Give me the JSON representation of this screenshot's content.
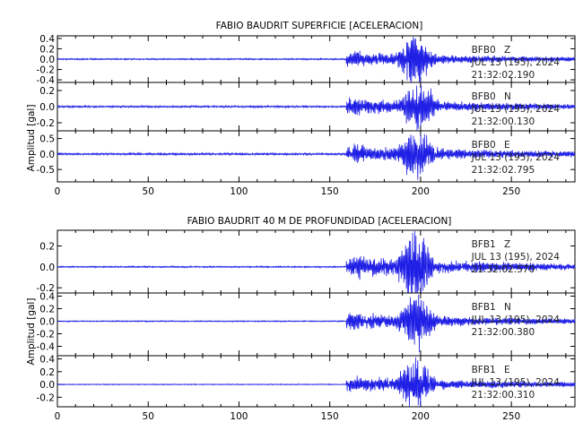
{
  "colors": {
    "trace": "#1f1fe6",
    "axis": "#000000",
    "background": "#ffffff"
  },
  "chart_data": [
    {
      "type": "line",
      "title": "FABIO BAUDRIT SUPERFICIE [ACELERACION]",
      "ylabel": "Amplitud [gal]",
      "xlim": [
        0,
        285
      ],
      "x_ticks": [
        "0",
        "50",
        "100",
        "150",
        "200",
        "250"
      ],
      "series": [
        {
          "name": "BFB0 Z",
          "station": "BFB0",
          "component": "Z",
          "date": "JUL 13 (195), 2024",
          "time": "21:32:02.190",
          "ylim": [
            -0.45,
            0.45
          ],
          "y_ticks": [
            "0.4",
            "0.2",
            "0.0",
            "-0.2",
            "-0.4"
          ],
          "noise_level": 0.012,
          "onset_s": 159,
          "peak_s": 197,
          "peak_amplitude": 0.42
        },
        {
          "name": "BFB0 N",
          "station": "BFB0",
          "component": "N",
          "date": "JUL 13 (195), 2024",
          "time": "21:32:00.130",
          "ylim": [
            -0.3,
            0.3
          ],
          "y_ticks": [
            "0.2",
            "0.0",
            "-0.2"
          ],
          "noise_level": 0.01,
          "onset_s": 159,
          "peak_s": 199,
          "peak_amplitude": 0.3
        },
        {
          "name": "BFB0 E",
          "station": "BFB0",
          "component": "E",
          "date": "JUL 13 (195), 2024",
          "time": "21:32:02.795",
          "ylim": [
            -0.9,
            0.75
          ],
          "y_ticks": [
            "0.5",
            "0.0",
            "-0.5"
          ],
          "noise_level": 0.03,
          "onset_s": 159,
          "peak_s": 198,
          "peak_amplitude": 0.8
        }
      ]
    },
    {
      "type": "line",
      "title": "FABIO BAUDRIT 40 M DE PROFUNDIDAD [ACELERACION]",
      "ylabel": "Amplitud [gal]",
      "xlim": [
        0,
        285
      ],
      "x_ticks": [
        "0",
        "50",
        "100",
        "150",
        "200",
        "250"
      ],
      "series": [
        {
          "name": "BFB1 Z",
          "station": "BFB1",
          "component": "Z",
          "date": "JUL 13 (195), 2024",
          "time": "21:32:02.570",
          "ylim": [
            -0.25,
            0.35
          ],
          "y_ticks": [
            "0.2",
            "0.0",
            "-0.2"
          ],
          "noise_level": 0.006,
          "onset_s": 159,
          "peak_s": 197,
          "peak_amplitude": 0.32
        },
        {
          "name": "BFB1 N",
          "station": "BFB1",
          "component": "N",
          "date": "JUL 13 (195), 2024",
          "time": "21:32:00.380",
          "ylim": [
            -0.55,
            0.45
          ],
          "y_ticks": [
            "0.4",
            "0.2",
            "0.0",
            "-0.2",
            "-0.4"
          ],
          "noise_level": 0.008,
          "onset_s": 159,
          "peak_s": 198,
          "peak_amplitude": 0.42
        },
        {
          "name": "BFB1 E",
          "station": "BFB1",
          "component": "E",
          "date": "JUL 13 (195), 2024",
          "time": "21:32:00.310",
          "ylim": [
            -0.35,
            0.45
          ],
          "y_ticks": [
            "0.4",
            "0.2",
            "0.0",
            "-0.2"
          ],
          "noise_level": 0.006,
          "onset_s": 159,
          "peak_s": 197,
          "peak_amplitude": 0.38
        }
      ]
    }
  ]
}
